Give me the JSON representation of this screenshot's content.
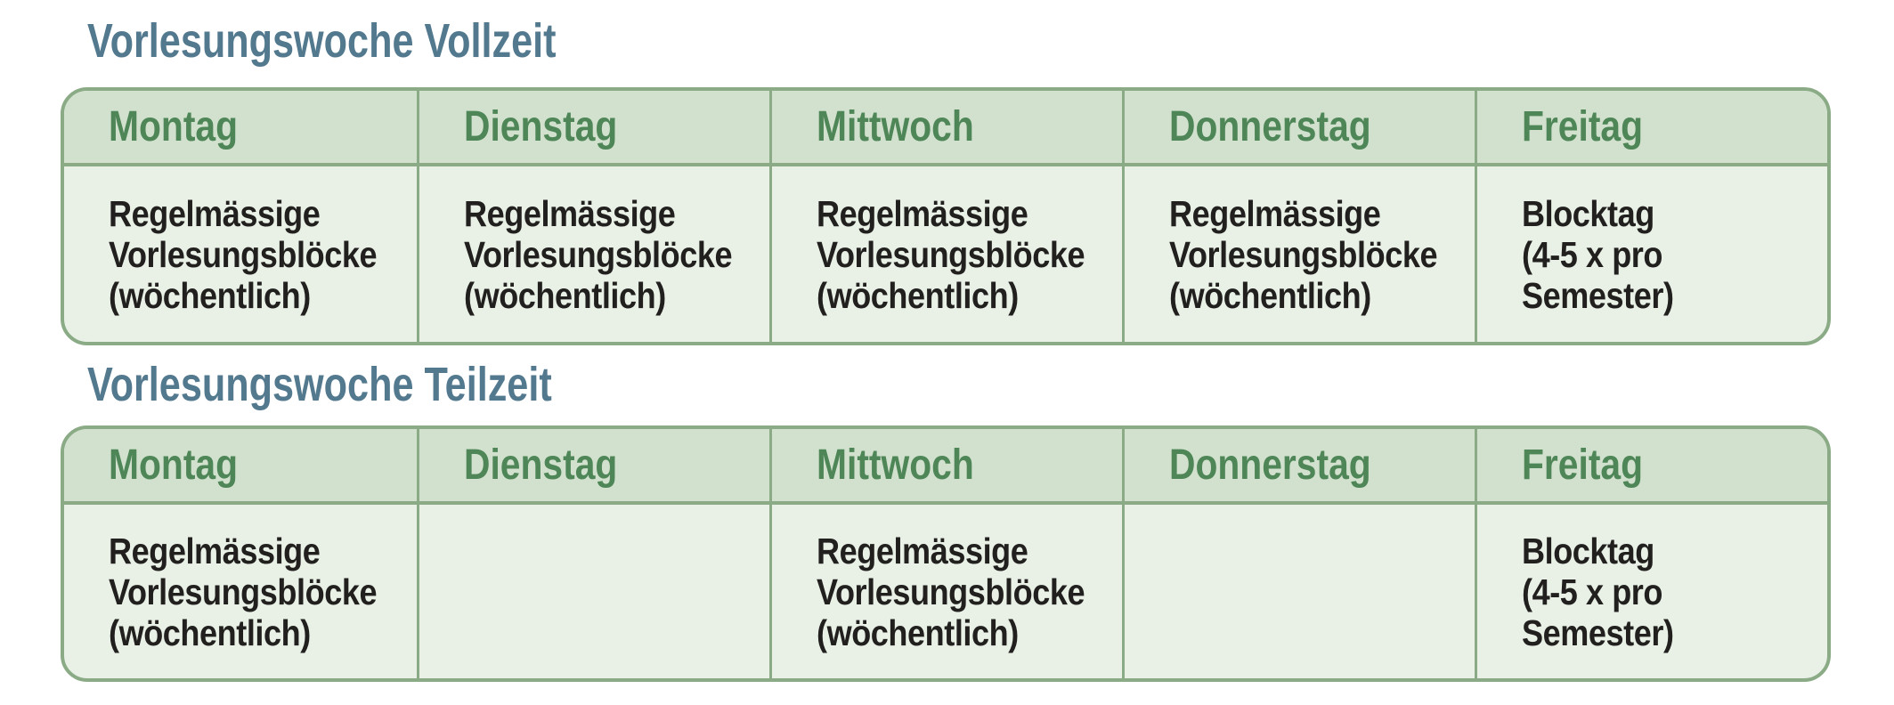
{
  "colors": {
    "title_text": "#53798f",
    "table_border": "#8aab85",
    "header_bg": "#d1e1ce",
    "body_bg": "#e9f1e7",
    "header_text": "#4e8657",
    "body_text": "#21201e",
    "page_bg": "#ffffff"
  },
  "sections": [
    {
      "title": "Vorlesungswoche Vollzeit",
      "table": {
        "headers": [
          "Montag",
          "Dienstag",
          "Mittwoch",
          "Donnerstag",
          "Freitag"
        ],
        "cells": [
          "Regelmässige\nVorlesungsblöcke\n(wöchentlich)",
          "Regelmässige\nVorlesungsblöcke\n(wöchentlich)",
          "Regelmässige\nVorlesungsblöcke\n(wöchentlich)",
          "Regelmässige\nVorlesungsblöcke\n(wöchentlich)",
          "Blocktag\n(4-5 x pro\nSemester)"
        ]
      }
    },
    {
      "title": "Vorlesungswoche Teilzeit",
      "table": {
        "headers": [
          "Montag",
          "Dienstag",
          "Mittwoch",
          "Donnerstag",
          "Freitag"
        ],
        "cells": [
          "Regelmässige\nVorlesungsblöcke\n(wöchentlich)",
          "",
          "Regelmässige\nVorlesungsblöcke\n(wöchentlich)",
          "",
          "Blocktag\n(4-5 x pro\nSemester)"
        ]
      }
    }
  ]
}
